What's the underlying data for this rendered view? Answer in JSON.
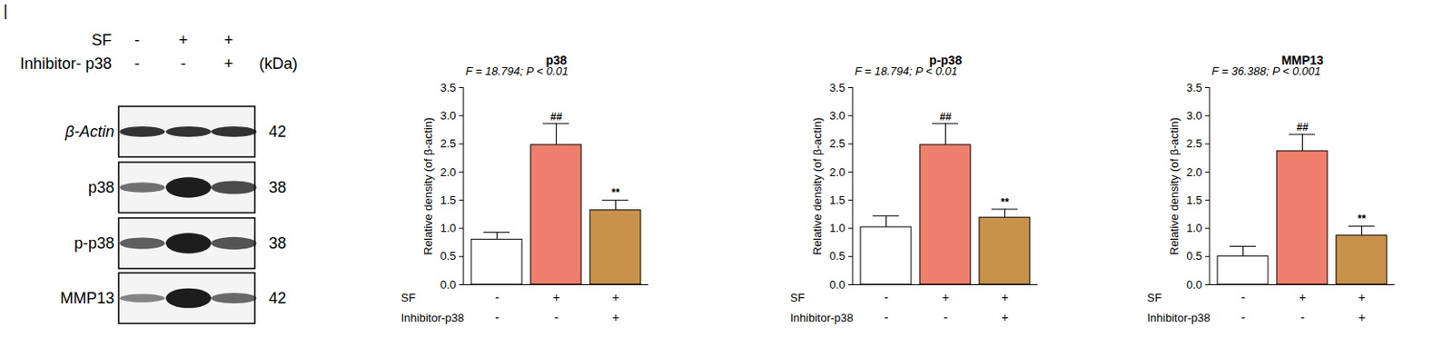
{
  "panel_label": "|",
  "blot": {
    "conditions": [
      {
        "name": "SF",
        "values": [
          "-",
          "+",
          "+"
        ]
      },
      {
        "name": "Inhibitor- p38",
        "values": [
          "-",
          "-",
          "+"
        ]
      }
    ],
    "unit_label": "(kDa)",
    "rows": [
      {
        "label": "β-Actin",
        "kda": 42
      },
      {
        "label": "p38",
        "kda": 38
      },
      {
        "label": "p-p38",
        "kda": 38
      },
      {
        "label": "MMP13",
        "kda": 42
      }
    ]
  },
  "chart_data": [
    {
      "type": "bar",
      "title": "p38",
      "annotation": "F = 18.794; P < 0.01",
      "ylabel": "Relative density (of β-actin)",
      "categories": [
        null,
        null,
        null
      ],
      "condition_labels": [
        {
          "name": "SF",
          "values": [
            "-",
            "+",
            "+"
          ]
        },
        {
          "name": "Inhibitor-p38",
          "values": [
            "-",
            "-",
            "+"
          ]
        }
      ],
      "values": [
        0.8,
        2.48,
        1.32
      ],
      "errors": [
        0.13,
        0.38,
        0.18
      ],
      "significance": [
        null,
        "##",
        "**"
      ],
      "colors": [
        "#ffffff",
        "#ef7f6d",
        "#c8924b"
      ],
      "ylim": [
        0,
        3.5
      ],
      "yticks": [
        {
          "value": 0,
          "label": "0.0"
        },
        0.5,
        {
          "value": 1,
          "label": "1.0"
        },
        1.5,
        {
          "value": 2,
          "label": "2.0"
        },
        2.5,
        {
          "value": 3,
          "label": "3.0"
        },
        3.5
      ]
    },
    {
      "type": "bar",
      "title": "p-p38",
      "annotation": "F = 18.794; P < 0.01",
      "ylabel": "Relative density (of β-actin)",
      "categories": [
        null,
        null,
        null
      ],
      "condition_labels": [
        {
          "name": "SF",
          "values": [
            "-",
            "+",
            "+"
          ]
        },
        {
          "name": "Inhibitor-p38",
          "values": [
            "-",
            "-",
            "+"
          ]
        }
      ],
      "values": [
        1.02,
        2.48,
        1.19
      ],
      "errors": [
        0.2,
        0.38,
        0.15
      ],
      "significance": [
        null,
        "##",
        "**"
      ],
      "colors": [
        "#ffffff",
        "#ef7f6d",
        "#c8924b"
      ],
      "ylim": [
        0,
        3.5
      ],
      "yticks": [
        {
          "value": 0,
          "label": "0.0"
        },
        0.5,
        {
          "value": 1,
          "label": "1.0"
        },
        1.5,
        {
          "value": 2,
          "label": "2.0"
        },
        2.5,
        {
          "value": 3,
          "label": "3.0"
        },
        3.5
      ]
    },
    {
      "type": "bar",
      "title": "MMP13",
      "annotation": "F = 36.388; P < 0.001",
      "ylabel": "Relative density (of β-actin)",
      "categories": [
        null,
        null,
        null
      ],
      "condition_labels": [
        {
          "name": "SF",
          "values": [
            "-",
            "+",
            "+"
          ]
        },
        {
          "name": "Inhibitor-p38",
          "values": [
            "-",
            "-",
            "+"
          ]
        }
      ],
      "values": [
        0.5,
        2.37,
        0.87
      ],
      "errors": [
        0.18,
        0.3,
        0.17
      ],
      "significance": [
        null,
        "##",
        "**"
      ],
      "colors": [
        "#ffffff",
        "#ef7f6d",
        "#c8924b"
      ],
      "ylim": [
        0,
        3.5
      ],
      "yticks": [
        {
          "value": 0,
          "label": "0.0"
        },
        0.5,
        {
          "value": 1,
          "label": "1.0"
        },
        1.5,
        {
          "value": 2,
          "label": "2.0"
        },
        2.5,
        {
          "value": 3,
          "label": "3.0"
        },
        3.5
      ]
    }
  ]
}
